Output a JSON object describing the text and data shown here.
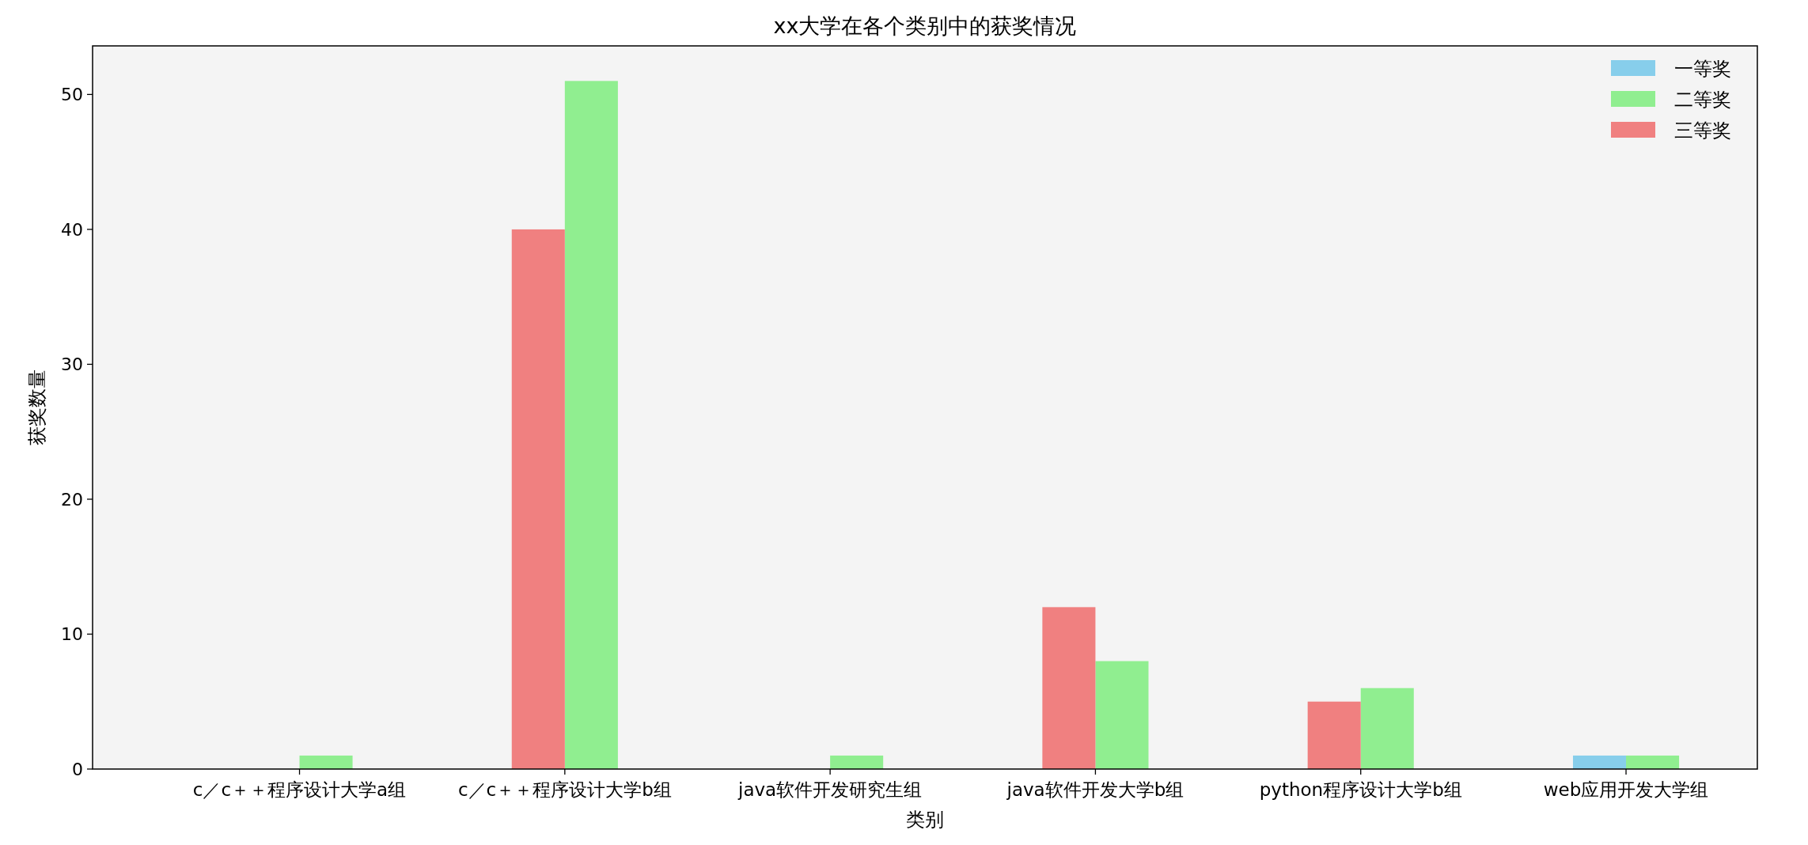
{
  "chart_data": {
    "type": "bar",
    "title": "xx大学在各个类别中的获奖情况",
    "xlabel": "类别",
    "ylabel": "获奖数量",
    "categories": [
      "c／c＋＋程序设计大学a组",
      "c／c＋＋程序设计大学b组",
      "java软件开发研究生组",
      "java软件开发大学b组",
      "python程序设计大学b组",
      "web应用开发大学组"
    ],
    "series": [
      {
        "name": "一等奖",
        "color": "#87ceeb",
        "values": [
          null,
          null,
          null,
          null,
          null,
          1
        ]
      },
      {
        "name": "二等奖",
        "color": "#90ee90",
        "values": [
          1,
          51,
          1,
          8,
          6,
          1
        ]
      },
      {
        "name": "三等奖",
        "color": "#f08080",
        "values": [
          null,
          40,
          null,
          12,
          5,
          null
        ]
      }
    ],
    "ylim": [
      0,
      53.6
    ],
    "yticks": [
      0,
      10,
      20,
      30,
      40,
      50
    ],
    "grid": false,
    "legend": "top right"
  }
}
